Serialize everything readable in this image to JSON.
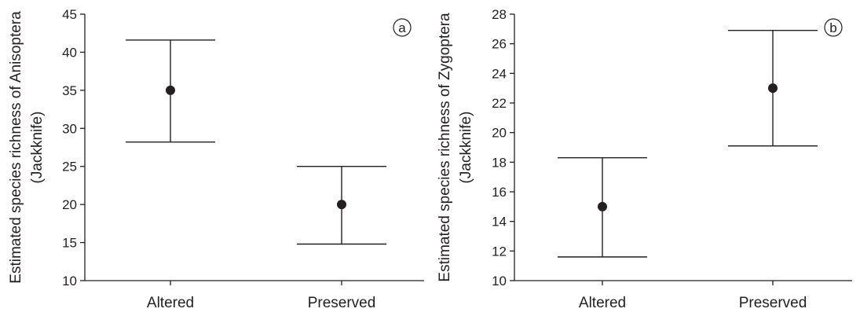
{
  "chart_data": [
    {
      "type": "scatter",
      "panel_label": "a",
      "ylabel_line1": "Estimated species richness of Anisoptera",
      "ylabel_line2": "(Jackknife)",
      "xlabel": "",
      "categories": [
        "Altered",
        "Preserved"
      ],
      "ylim": [
        10,
        45
      ],
      "yticks": [
        10,
        15,
        20,
        25,
        30,
        35,
        40,
        45
      ],
      "points": [
        {
          "category": "Altered",
          "y": 35,
          "lower": 28.2,
          "upper": 41.6
        },
        {
          "category": "Preserved",
          "y": 20,
          "lower": 14.8,
          "upper": 25
        }
      ],
      "grid": false
    },
    {
      "type": "scatter",
      "panel_label": "b",
      "ylabel_line1": "Estimated species richness of Zygoptera",
      "ylabel_line2": "(Jackknife)",
      "xlabel": "",
      "categories": [
        "Altered",
        "Preserved"
      ],
      "ylim": [
        10,
        28
      ],
      "yticks": [
        10,
        12,
        14,
        16,
        18,
        20,
        22,
        24,
        26,
        28
      ],
      "points": [
        {
          "category": "Altered",
          "y": 15,
          "lower": 11.6,
          "upper": 18.3
        },
        {
          "category": "Preserved",
          "y": 23,
          "lower": 19.1,
          "upper": 26.9
        }
      ],
      "grid": false
    }
  ]
}
